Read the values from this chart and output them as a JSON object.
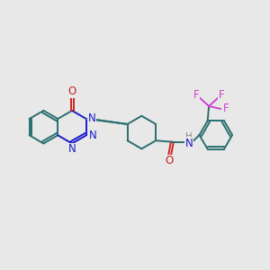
{
  "bg_color": "#e8e8e8",
  "bond_color": "#2a6e6e",
  "n_color": "#1a1acc",
  "o_color": "#cc2222",
  "f_color": "#cc44cc",
  "h_color": "#888888",
  "line_width": 1.4,
  "font_size": 8.5,
  "fig_width": 3.0,
  "fig_height": 3.0,
  "xlim": [
    0,
    10
  ],
  "ylim": [
    0,
    10
  ]
}
